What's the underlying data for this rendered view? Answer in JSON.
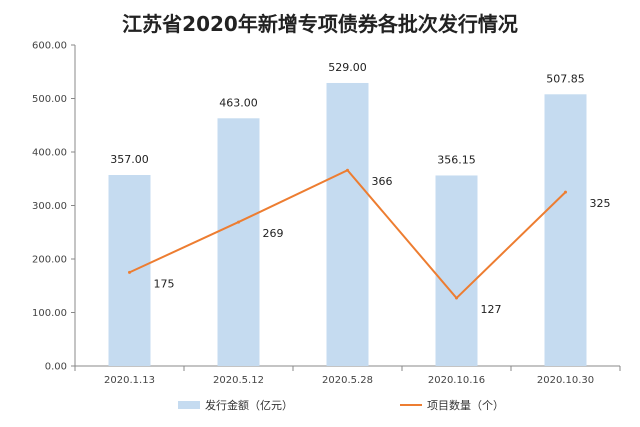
{
  "chart_data": {
    "type": "bar",
    "title": "江苏省2020年新增专项债券各批次发行情况",
    "categories": [
      "2020.1.13",
      "2020.5.12",
      "2020.5.28",
      "2020.10.16",
      "2020.10.30"
    ],
    "series": [
      {
        "name": "发行金额（亿元）",
        "type": "bar",
        "values": [
          357.0,
          463.0,
          529.0,
          356.15,
          507.85
        ],
        "labels": [
          "357.00",
          "463.00",
          "529.00",
          "356.15",
          "507.85"
        ],
        "color": "#c5dbf0"
      },
      {
        "name": "项目数量（个）",
        "type": "line",
        "values": [
          175,
          269,
          366,
          127,
          325
        ],
        "labels": [
          "175",
          "269",
          "366",
          "127",
          "325"
        ],
        "color": "#ed7d31"
      }
    ],
    "ylim": [
      0,
      600
    ],
    "yticks": [
      "0.00",
      "100.00",
      "200.00",
      "300.00",
      "400.00",
      "500.00",
      "600.00"
    ],
    "ytick_values": [
      0,
      100,
      200,
      300,
      400,
      500,
      600
    ],
    "grid": false,
    "legend": "bottom"
  }
}
